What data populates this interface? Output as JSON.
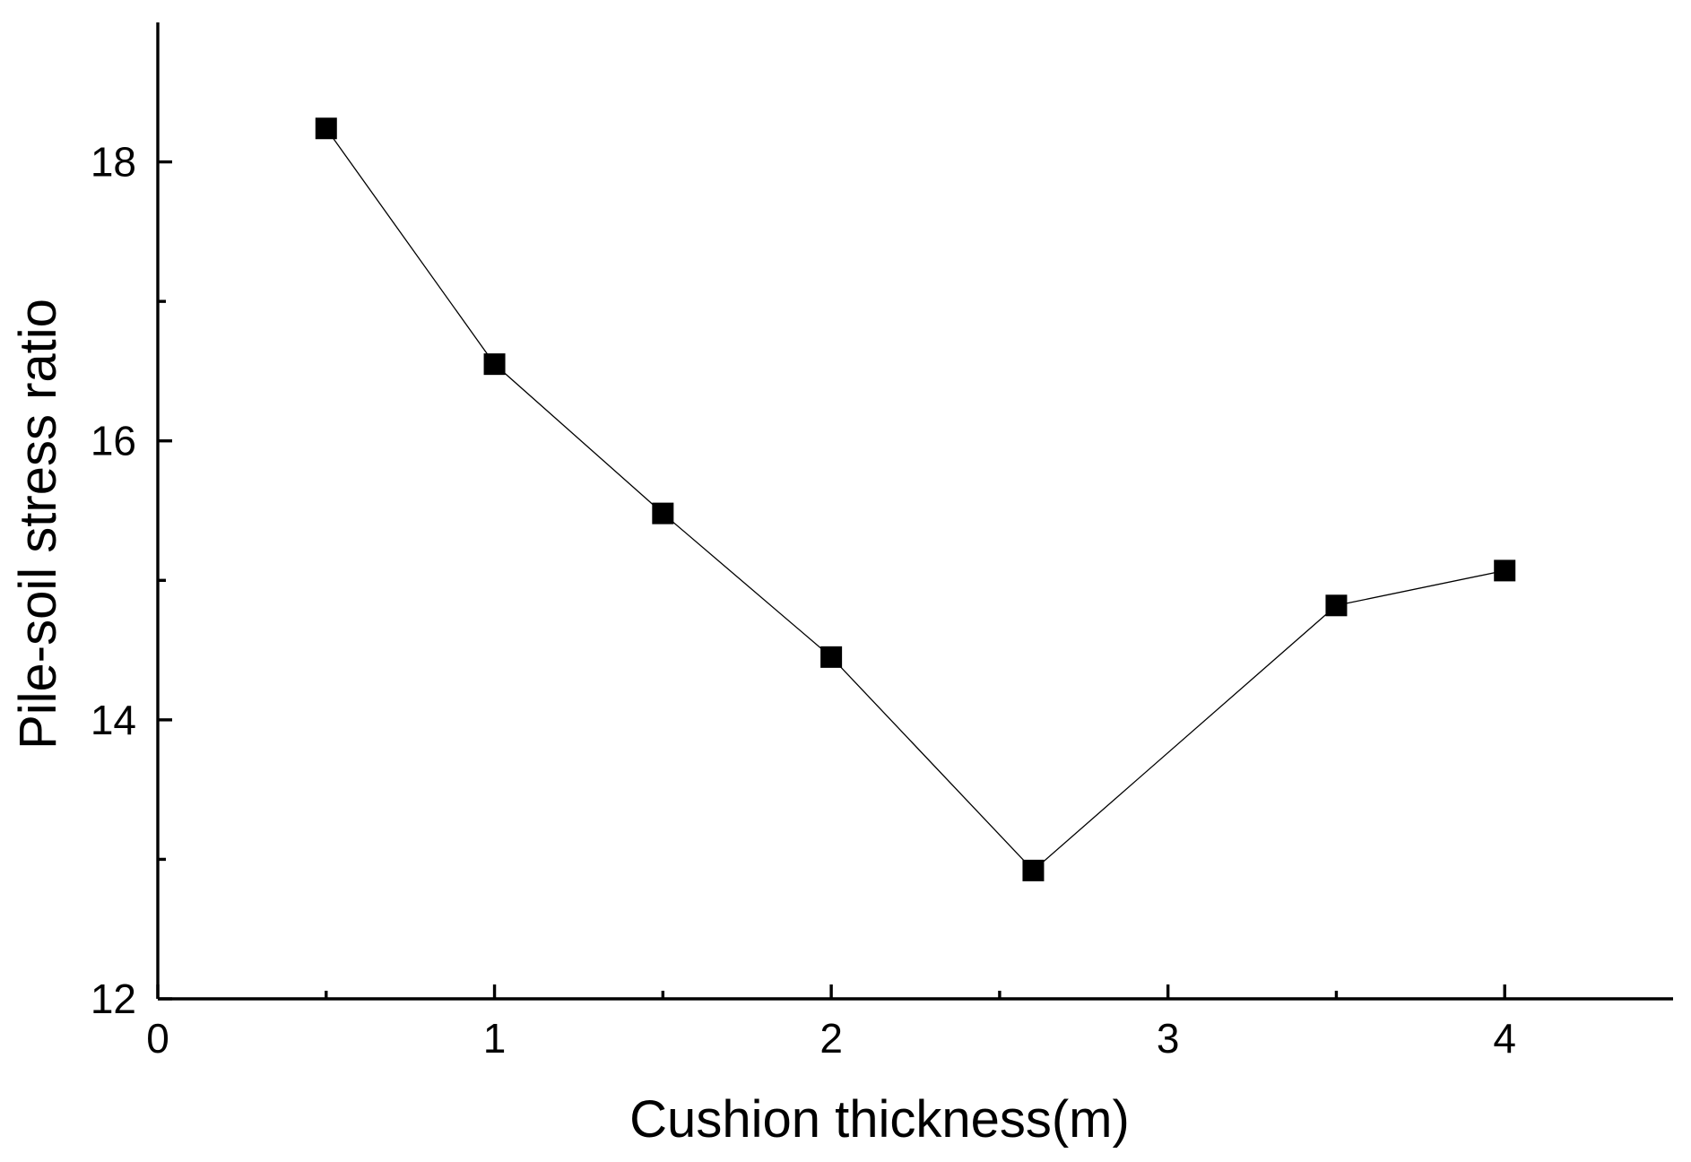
{
  "chart_data": {
    "type": "line",
    "title": "",
    "xlabel": "Cushion thickness(m)",
    "ylabel": "Pile-soil stress ratio",
    "xlim": [
      0,
      4.5
    ],
    "ylim": [
      12,
      19
    ],
    "x_ticks": [
      0,
      1,
      2,
      3,
      4
    ],
    "x_minor_ticks": [
      0.5,
      1.5,
      2.5,
      3.5
    ],
    "y_ticks": [
      12,
      14,
      16,
      18
    ],
    "y_minor_ticks": [
      13,
      15,
      17
    ],
    "grid": false,
    "marker": "square",
    "series": [
      {
        "x": [
          0.5,
          1.0,
          1.5,
          2.0,
          2.6,
          3.5,
          4.0
        ],
        "y": [
          18.24,
          16.55,
          15.48,
          14.45,
          12.92,
          14.82,
          15.07
        ]
      }
    ],
    "colors": {
      "line": "#000000",
      "marker": "#000000"
    }
  }
}
